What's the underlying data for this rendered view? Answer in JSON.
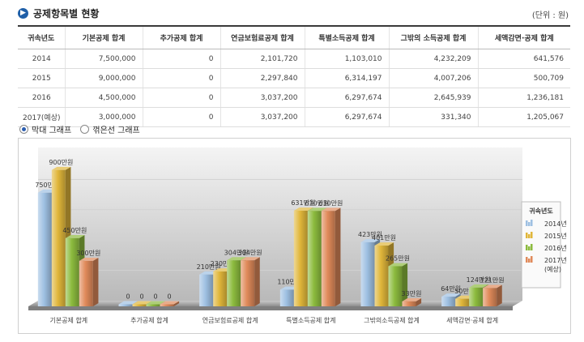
{
  "header": {
    "icon": "arrow-right-icon",
    "title": "공제항목별 현황",
    "unit": "(단위 : 원)"
  },
  "table": {
    "columns": [
      "귀속년도",
      "기본공제 합계",
      "추가공제 합계",
      "연금보험료공제 합계",
      "특별소득공제 합계",
      "그밖의 소득공제 합계",
      "세액감면·공제 합계"
    ],
    "rows": [
      [
        "2014",
        "7,500,000",
        "0",
        "2,101,720",
        "1,103,010",
        "4,232,209",
        "641,576"
      ],
      [
        "2015",
        "9,000,000",
        "0",
        "2,297,840",
        "6,314,197",
        "4,007,206",
        "500,709"
      ],
      [
        "2016",
        "4,500,000",
        "0",
        "3,037,200",
        "6,297,674",
        "2,645,939",
        "1,236,181"
      ],
      [
        "2017(예상)",
        "3,000,000",
        "0",
        "3,037,200",
        "6,297,674",
        "331,340",
        "1,205,067"
      ]
    ]
  },
  "view_toggle": {
    "options": [
      "막대 그래프",
      "꺾은선 그래프"
    ],
    "selected": "막대 그래프"
  },
  "chart_data": {
    "type": "bar",
    "categories": [
      "기본공제 합계",
      "추가공제 합계",
      "연금보험료공제 합계",
      "특별소득공제 합계",
      "그밖의소득공제 합계",
      "세액감면·공제 합계"
    ],
    "series": [
      {
        "name": "2014년",
        "values": [
          750,
          0,
          210,
          110,
          423,
          64
        ],
        "labels": [
          "750만원",
          "0",
          "210만원",
          "110만원",
          "423만원",
          "64만원"
        ],
        "color": "#9ec0e2"
      },
      {
        "name": "2015년",
        "values": [
          900,
          0,
          230,
          631,
          401,
          50
        ],
        "labels": [
          "900만원",
          "0",
          "230만원",
          "631만원",
          "401만원",
          "50만원"
        ],
        "color": "#e0b63a"
      },
      {
        "name": "2016년",
        "values": [
          450,
          0,
          304,
          630,
          265,
          124
        ],
        "labels": [
          "450만원",
          "0",
          "304만원",
          "630만원",
          "265만원",
          "124만원"
        ],
        "color": "#8cbb3e"
      },
      {
        "name": "2017년\n(예상)",
        "values": [
          300,
          0,
          304,
          630,
          33,
          121
        ],
        "labels": [
          "300만원",
          "0",
          "304만원",
          "630만원",
          "33만원",
          "121만원"
        ],
        "color": "#e08a5a"
      }
    ],
    "legend_title": "귀속년도",
    "legend_position": "right",
    "unit": "만원",
    "ylim": [
      0,
      1000
    ],
    "grid": true
  }
}
